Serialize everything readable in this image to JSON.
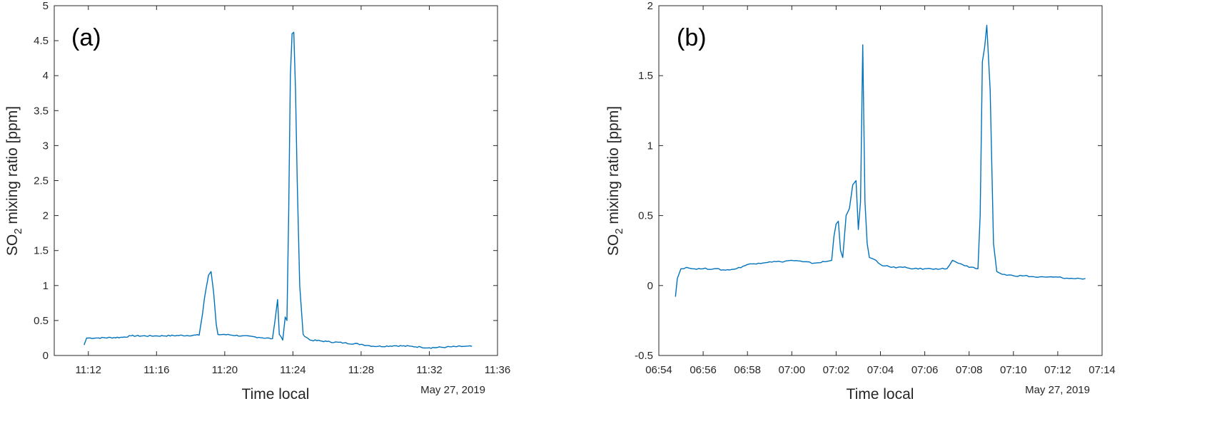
{
  "chart_data": [
    {
      "type": "line",
      "panel_label": "(a)",
      "xlabel": "Time local",
      "ylabel_main": "SO",
      "ylabel_sub": "2",
      "ylabel_rest": " mixing ratio [ppm]",
      "date_caption": "May 27, 2019",
      "xlim": [
        "11:10",
        "11:36"
      ],
      "ylim": [
        0,
        5
      ],
      "yticks": [
        0,
        0.5,
        1,
        1.5,
        2,
        2.5,
        3,
        3.5,
        4,
        4.5,
        5
      ],
      "ytick_labels": [
        "0",
        "0.5",
        "1",
        "1.5",
        "2",
        "2.5",
        "3",
        "3.5",
        "4",
        "4.5",
        "5"
      ],
      "xticks": [
        "11:12",
        "11:16",
        "11:20",
        "11:24",
        "11:28",
        "11:32",
        "11:36"
      ],
      "line_color": "#0072BD",
      "series": [
        {
          "x": [
            "11:11:45",
            "11:11:54",
            "11:12:30",
            "11:14:00",
            "11:14:30",
            "11:16:00",
            "11:18:30",
            "11:18:42",
            "11:18:48",
            "11:18:54",
            "11:19:03",
            "11:19:12",
            "11:19:21",
            "11:19:30",
            "11:19:36",
            "11:20:00",
            "11:21:00",
            "11:22:00",
            "11:22:48",
            "11:22:57",
            "11:23:06",
            "11:23:12",
            "11:23:24",
            "11:23:33",
            "11:23:39",
            "11:23:45",
            "11:23:51",
            "11:23:57",
            "11:24:03",
            "11:24:09",
            "11:24:15",
            "11:24:24",
            "11:24:36",
            "11:25:00",
            "11:26:00",
            "11:27:00",
            "11:28:00",
            "11:28:30",
            "11:29:00",
            "11:30:00",
            "11:31:00",
            "11:31:30",
            "11:32:00",
            "11:33:00",
            "11:34:00",
            "11:34:30"
          ],
          "y": [
            0.15,
            0.25,
            0.25,
            0.26,
            0.28,
            0.28,
            0.29,
            0.6,
            0.8,
            0.95,
            1.15,
            1.2,
            0.9,
            0.45,
            0.3,
            0.3,
            0.28,
            0.26,
            0.24,
            0.5,
            0.8,
            0.3,
            0.22,
            0.55,
            0.5,
            2.0,
            4.0,
            4.6,
            4.62,
            3.8,
            2.5,
            1.0,
            0.3,
            0.22,
            0.2,
            0.18,
            0.16,
            0.14,
            0.13,
            0.14,
            0.13,
            0.12,
            0.11,
            0.12,
            0.13,
            0.13
          ]
        }
      ]
    },
    {
      "type": "line",
      "panel_label": "(b)",
      "xlabel": "Time local",
      "ylabel_main": "SO",
      "ylabel_sub": "2",
      "ylabel_rest": " mixing ratio [ppm]",
      "date_caption": "May 27, 2019",
      "xlim": [
        "06:54",
        "07:14"
      ],
      "ylim": [
        -0.5,
        2
      ],
      "yticks": [
        -0.5,
        0,
        0.5,
        1,
        1.5,
        2
      ],
      "ytick_labels": [
        "-0.5",
        "0",
        "0.5",
        "1",
        "1.5",
        "2"
      ],
      "xticks": [
        "06:54",
        "06:56",
        "06:58",
        "07:00",
        "07:02",
        "07:04",
        "07:06",
        "07:08",
        "07:10",
        "07:12",
        "07:14"
      ],
      "line_color": "#0072BD",
      "series": [
        {
          "x": [
            "06:54:45",
            "06:54:50",
            "06:55:00",
            "06:55:15",
            "06:55:30",
            "06:56:00",
            "06:56:30",
            "06:57:00",
            "06:57:30",
            "06:58:00",
            "06:58:30",
            "06:59:00",
            "06:59:30",
            "07:00:00",
            "07:00:30",
            "07:01:00",
            "07:01:30",
            "07:01:48",
            "07:01:54",
            "07:02:00",
            "07:02:06",
            "07:02:12",
            "07:02:18",
            "07:02:27",
            "07:02:36",
            "07:02:45",
            "07:02:54",
            "07:03:00",
            "07:03:06",
            "07:03:12",
            "07:03:18",
            "07:03:24",
            "07:03:30",
            "07:03:48",
            "07:04:00",
            "07:04:30",
            "07:05:00",
            "07:05:30",
            "07:06:00",
            "07:06:30",
            "07:07:00",
            "07:07:15",
            "07:07:30",
            "07:08:00",
            "07:08:24",
            "07:08:30",
            "07:08:36",
            "07:08:42",
            "07:08:48",
            "07:08:57",
            "07:09:06",
            "07:09:15",
            "07:09:30",
            "07:10:00",
            "07:10:30",
            "07:11:00",
            "07:11:30",
            "07:12:00",
            "07:12:30",
            "07:13:00",
            "07:13:15"
          ],
          "y": [
            -0.08,
            0.05,
            0.12,
            0.13,
            0.12,
            0.12,
            0.12,
            0.11,
            0.12,
            0.15,
            0.16,
            0.17,
            0.17,
            0.18,
            0.17,
            0.16,
            0.17,
            0.18,
            0.35,
            0.44,
            0.46,
            0.25,
            0.2,
            0.5,
            0.55,
            0.72,
            0.75,
            0.4,
            0.6,
            1.72,
            0.6,
            0.3,
            0.2,
            0.18,
            0.15,
            0.13,
            0.13,
            0.12,
            0.12,
            0.12,
            0.12,
            0.18,
            0.16,
            0.13,
            0.12,
            0.5,
            1.6,
            1.7,
            1.86,
            1.4,
            0.3,
            0.1,
            0.08,
            0.07,
            0.07,
            0.06,
            0.06,
            0.06,
            0.05,
            0.05,
            0.05
          ]
        }
      ]
    }
  ]
}
